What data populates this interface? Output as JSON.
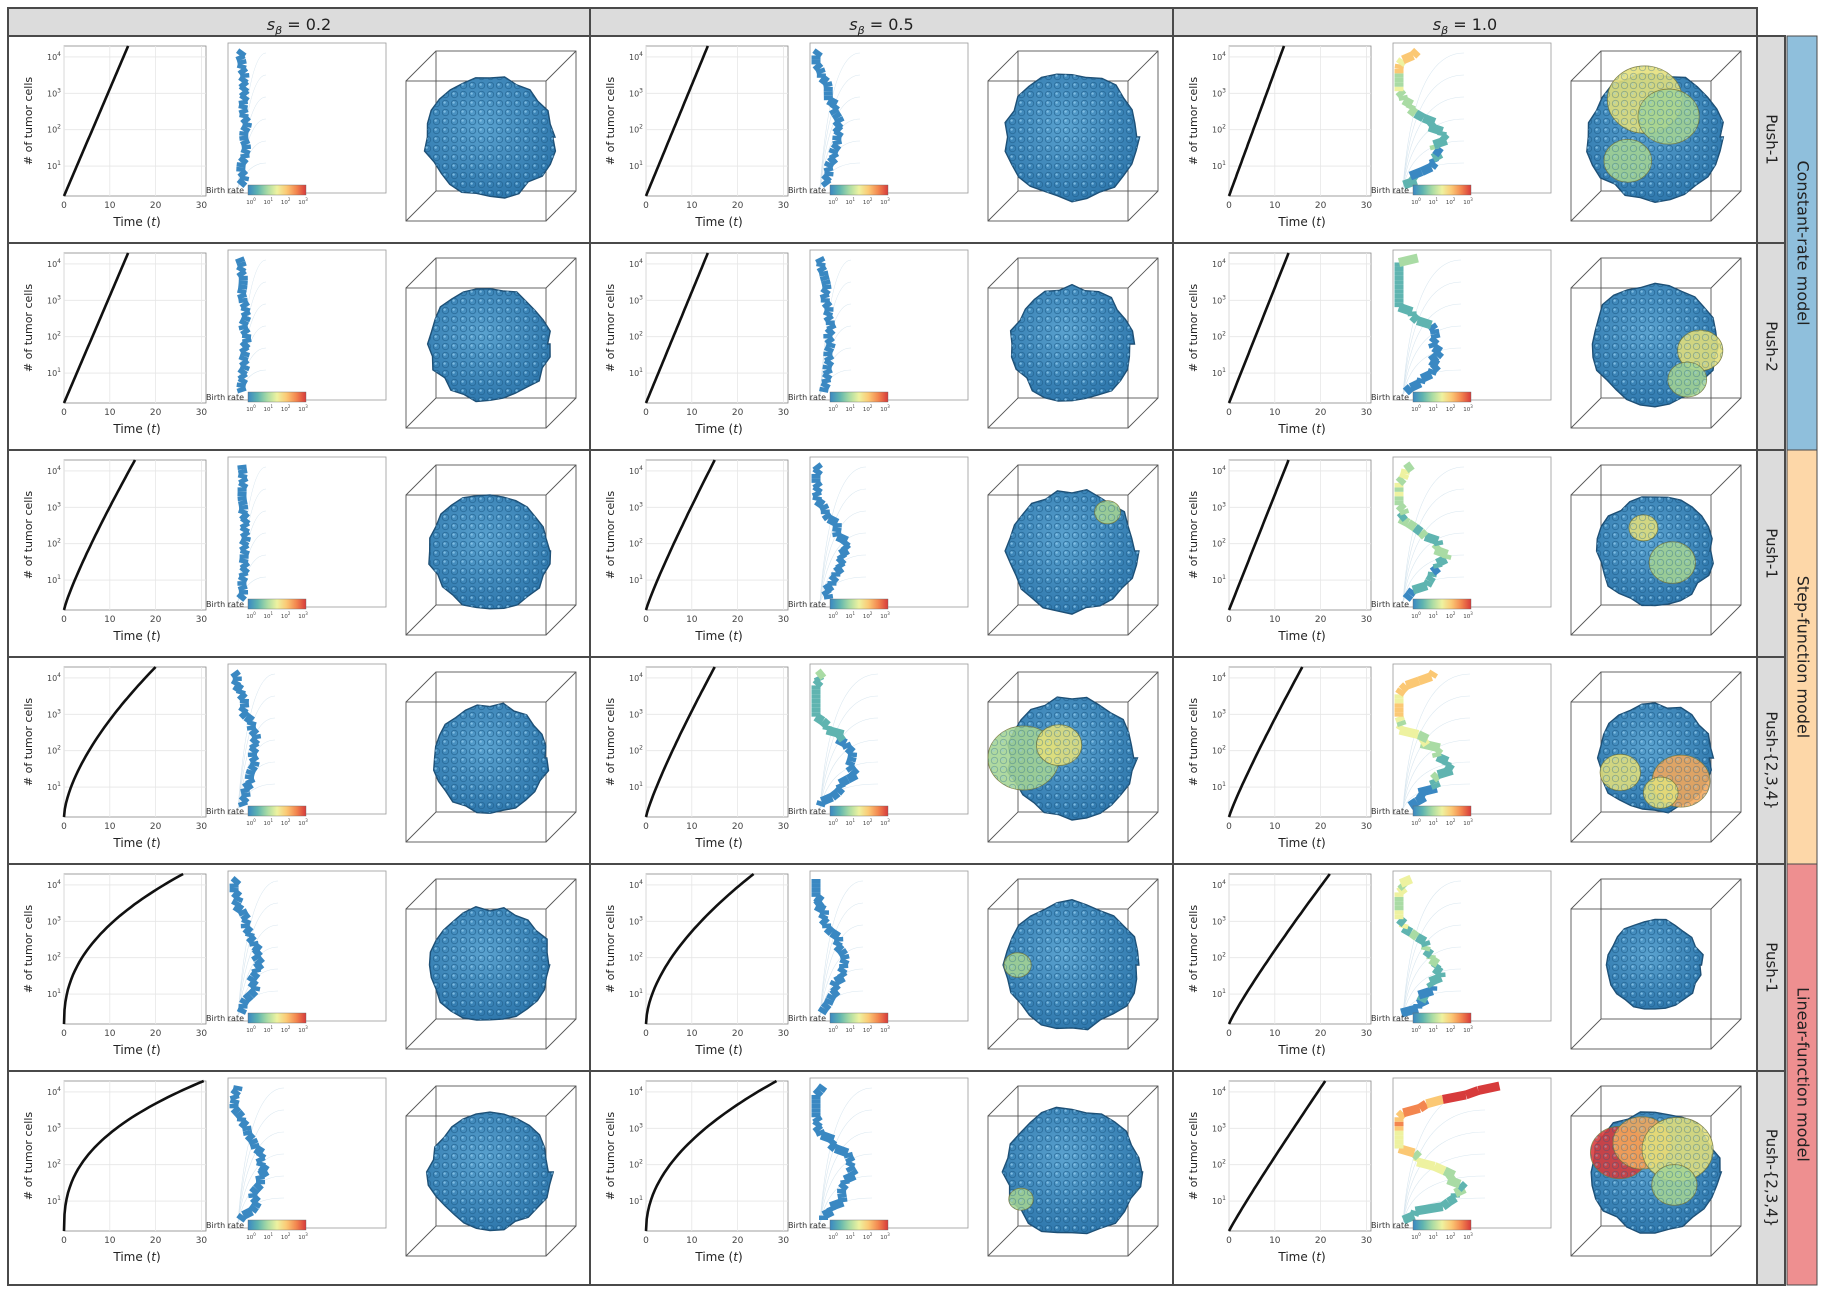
{
  "columns": [
    {
      "prefix": "s",
      "sub": "β",
      "rest": " = 0.2"
    },
    {
      "prefix": "s",
      "sub": "β",
      "rest": " = 0.5"
    },
    {
      "prefix": "s",
      "sub": "β",
      "rest": " = 1.0"
    }
  ],
  "rows": [
    {
      "label": "Push-1"
    },
    {
      "label": "Push-2"
    },
    {
      "label": "Push-1"
    },
    {
      "label": "Push-{2,3,4}"
    },
    {
      "label": "Push-1"
    },
    {
      "label": "Push-{2,3,4}"
    }
  ],
  "models": [
    {
      "name": "Constant-rate model",
      "rows": [
        0,
        1
      ],
      "color": "#8fbfdc"
    },
    {
      "name": "Step-function model",
      "rows": [
        2,
        3
      ],
      "color": "#fdd7a8"
    },
    {
      "name": "Linear-function model",
      "rows": [
        4,
        5
      ],
      "color": "#ee8f90"
    }
  ],
  "growth_axis": {
    "ylabel": "# of tumor cells",
    "xlabel_prefix": "Time (",
    "xlabel_var": "t",
    "xlabel_suffix": ")",
    "xticks": [
      0,
      10,
      20,
      30
    ],
    "yticks": [
      {
        "base": "10",
        "exp": "1",
        "value": 10
      },
      {
        "base": "10",
        "exp": "2",
        "value": 100
      },
      {
        "base": "10",
        "exp": "3",
        "value": 1000
      },
      {
        "base": "10",
        "exp": "4",
        "value": 10000
      }
    ],
    "xlim": [
      0,
      31
    ],
    "ylim": [
      1.5,
      20000
    ]
  },
  "colorbar": {
    "label": "Birth rate",
    "ticks": [
      {
        "base": "10",
        "exp": "0"
      },
      {
        "base": "10",
        "exp": "1"
      },
      {
        "base": "10",
        "exp": "2"
      },
      {
        "base": "10",
        "exp": "3"
      }
    ],
    "colors": [
      "#3a88c2",
      "#5fb4b0",
      "#a9dba4",
      "#eef2a0",
      "#fbc874",
      "#f3864f",
      "#d73b3b"
    ]
  },
  "colors": {
    "cell_blue": "#3b8ac0",
    "cell_yellow": "#e4e07a",
    "cell_green": "#a5d493",
    "cell_orange": "#f4a85a",
    "cell_red": "#d83a3a",
    "header_bg": "#dcdcdc",
    "border": "#4a4a4a"
  },
  "chart_data": [
    {
      "type": "line",
      "panel": "row 1, col 1",
      "x": [
        0,
        14
      ],
      "y": [
        1.5,
        20000
      ],
      "yscale": "log"
    },
    {
      "type": "line",
      "panel": "row 1, col 2",
      "x": [
        0,
        13.5
      ],
      "y": [
        1.5,
        20000
      ],
      "yscale": "log"
    },
    {
      "type": "line",
      "panel": "row 1, col 3",
      "x": [
        0,
        12
      ],
      "y": [
        1.5,
        20000
      ],
      "yscale": "log"
    },
    {
      "type": "line",
      "panel": "row 2, col 1",
      "x": [
        0,
        14
      ],
      "y": [
        1.5,
        20000
      ],
      "yscale": "log"
    },
    {
      "type": "line",
      "panel": "row 2, col 2",
      "x": [
        0,
        13.5
      ],
      "y": [
        1.5,
        20000
      ],
      "yscale": "log"
    },
    {
      "type": "line",
      "panel": "row 2, col 3",
      "x": [
        0,
        13
      ],
      "y": [
        1.5,
        20000
      ],
      "yscale": "log"
    },
    {
      "type": "line",
      "panel": "row 3, col 1",
      "x": [
        0,
        15.5
      ],
      "y": [
        1.5,
        20000
      ],
      "yscale": "log"
    },
    {
      "type": "line",
      "panel": "row 3, col 2",
      "x": [
        0,
        15
      ],
      "y": [
        1.5,
        20000
      ],
      "yscale": "log"
    },
    {
      "type": "line",
      "panel": "row 3, col 3",
      "x": [
        0,
        13
      ],
      "y": [
        1.5,
        20000
      ],
      "yscale": "log"
    },
    {
      "type": "line",
      "panel": "row 4, col 1",
      "x": [
        0,
        20
      ],
      "y": [
        1.5,
        20000
      ],
      "yscale": "log"
    },
    {
      "type": "line",
      "panel": "row 4, col 2",
      "x": [
        0,
        15
      ],
      "y": [
        1.5,
        20000
      ],
      "yscale": "log"
    },
    {
      "type": "line",
      "panel": "row 4, col 3",
      "x": [
        0,
        16
      ],
      "y": [
        1.5,
        20000
      ],
      "yscale": "log"
    },
    {
      "type": "line",
      "panel": "row 5, col 1",
      "x": [
        0,
        26
      ],
      "y": [
        1.5,
        20000
      ],
      "yscale": "log"
    },
    {
      "type": "line",
      "panel": "row 5, col 2",
      "x": [
        0,
        23.5
      ],
      "y": [
        1.5,
        20000
      ],
      "yscale": "log"
    },
    {
      "type": "line",
      "panel": "row 5, col 3",
      "x": [
        0,
        22
      ],
      "y": [
        1.5,
        20000
      ],
      "yscale": "log"
    },
    {
      "type": "line",
      "panel": "row 6, col 1",
      "x": [
        0,
        30.5
      ],
      "y": [
        1.5,
        20000
      ],
      "yscale": "log"
    },
    {
      "type": "line",
      "panel": "row 6, col 2",
      "x": [
        0,
        28.5
      ],
      "y": [
        1.5,
        20000
      ],
      "yscale": "log"
    },
    {
      "type": "line",
      "panel": "row 6, col 3",
      "x": [
        0,
        21
      ],
      "y": [
        1.5,
        20000
      ],
      "yscale": "log"
    }
  ]
}
